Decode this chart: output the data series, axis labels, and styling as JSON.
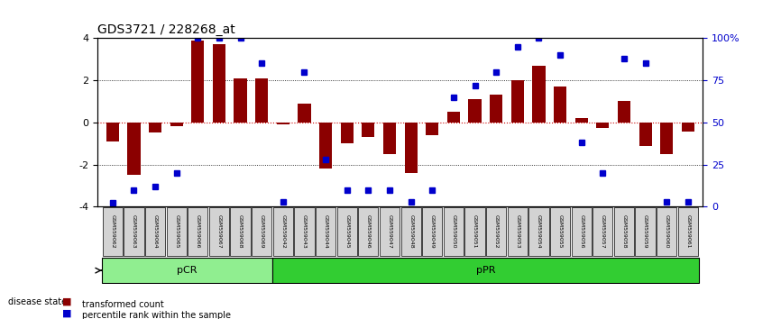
{
  "title": "GDS3721 / 228268_at",
  "samples": [
    "GSM559062",
    "GSM559063",
    "GSM559064",
    "GSM559065",
    "GSM559066",
    "GSM559067",
    "GSM559068",
    "GSM559069",
    "GSM559042",
    "GSM559043",
    "GSM559044",
    "GSM559045",
    "GSM559046",
    "GSM559047",
    "GSM559048",
    "GSM559049",
    "GSM559050",
    "GSM559051",
    "GSM559052",
    "GSM559053",
    "GSM559054",
    "GSM559055",
    "GSM559056",
    "GSM559057",
    "GSM559058",
    "GSM559059",
    "GSM559060",
    "GSM559061"
  ],
  "bar_values": [
    -0.9,
    -2.5,
    -0.5,
    -0.2,
    3.9,
    3.7,
    2.1,
    2.1,
    -0.1,
    0.9,
    -2.2,
    -1.0,
    -0.7,
    -1.5,
    -2.4,
    -0.6,
    0.5,
    1.1,
    1.3,
    2.0,
    2.7,
    1.7,
    0.2,
    -0.25,
    1.0,
    -1.1,
    -1.5,
    -0.45
  ],
  "blue_values": [
    2,
    10,
    12,
    20,
    100,
    100,
    100,
    85,
    3,
    80,
    28,
    10,
    10,
    10,
    3,
    10,
    65,
    72,
    80,
    95,
    100,
    90,
    38,
    20,
    88,
    85,
    3,
    3
  ],
  "pcr_count": 8,
  "ppr_count": 20,
  "ylim": [
    -4,
    4
  ],
  "y2lim": [
    0,
    100
  ],
  "yticks": [
    -4,
    -2,
    0,
    2,
    4
  ],
  "y2ticks": [
    0,
    25,
    50,
    75,
    100
  ],
  "y2ticklabels": [
    "0",
    "25",
    "50",
    "75",
    "100%"
  ],
  "bar_color": "#8B0000",
  "blue_color": "#0000CC",
  "zero_line_color": "#CC0000",
  "dot_line_color": "black",
  "pcr_color": "#90EE90",
  "ppr_color": "#32CD32",
  "label_bg_color": "#D3D3D3",
  "legend_bar": "transformed count",
  "legend_dot": "percentile rank within the sample",
  "disease_state_label": "disease state",
  "pcr_label": "pCR",
  "ppr_label": "pPR"
}
